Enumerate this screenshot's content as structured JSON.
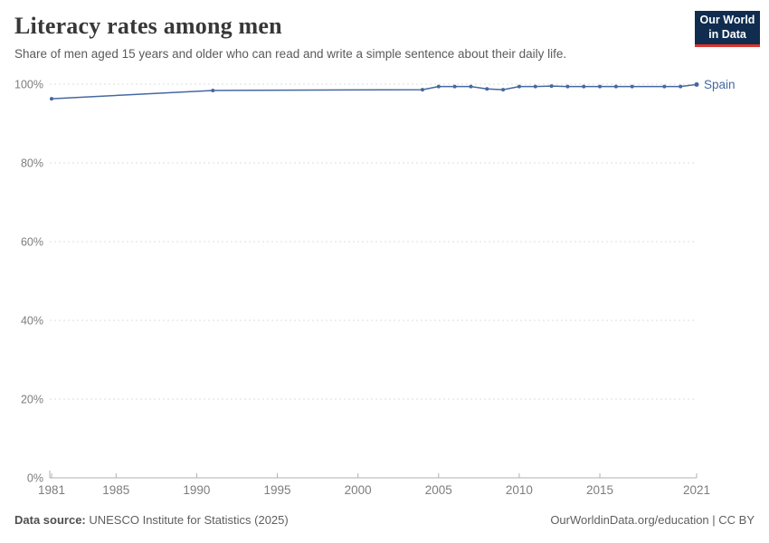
{
  "header": {
    "title": "Literacy rates among men",
    "subtitle": "Share of men aged 15 years and older who can read and write a simple sentence about their daily life."
  },
  "logo": {
    "line1": "Our World",
    "line2": "in Data",
    "bg_color": "#102d50",
    "accent_color": "#dc352c"
  },
  "footer": {
    "source_label": "Data source:",
    "source_text": " UNESCO Institute for Statistics (2025)",
    "link_text": "OurWorldinData.org/education | CC BY"
  },
  "chart_data": {
    "type": "line",
    "title": "Literacy rates among men",
    "xlabel": "",
    "ylabel": "",
    "xlim": [
      1981,
      2021
    ],
    "ylim": [
      0,
      100
    ],
    "x_ticks": [
      1981,
      1985,
      1990,
      1995,
      2000,
      2005,
      2010,
      2015,
      2021
    ],
    "y_ticks": [
      0,
      20,
      40,
      60,
      80,
      100
    ],
    "y_tick_suffix": "%",
    "grid": "horizontal-dashed",
    "legend_position": "end-of-line",
    "colors": {
      "line": "#4568a2",
      "gridline": "#dddddd",
      "axis": "#b0b0b0",
      "tick_label": "#7d7d7d"
    },
    "series": [
      {
        "name": "Spain",
        "color": "#4568a2",
        "points": [
          {
            "year": 1981,
            "value": 96.3
          },
          {
            "year": 1991,
            "value": 98.4
          },
          {
            "year": 2004,
            "value": 98.6
          },
          {
            "year": 2005,
            "value": 99.4
          },
          {
            "year": 2006,
            "value": 99.4
          },
          {
            "year": 2007,
            "value": 99.4
          },
          {
            "year": 2008,
            "value": 98.8
          },
          {
            "year": 2009,
            "value": 98.6
          },
          {
            "year": 2010,
            "value": 99.4
          },
          {
            "year": 2011,
            "value": 99.4
          },
          {
            "year": 2012,
            "value": 99.5
          },
          {
            "year": 2013,
            "value": 99.4
          },
          {
            "year": 2014,
            "value": 99.4
          },
          {
            "year": 2015,
            "value": 99.4
          },
          {
            "year": 2016,
            "value": 99.4
          },
          {
            "year": 2017,
            "value": 99.4
          },
          {
            "year": 2019,
            "value": 99.4
          },
          {
            "year": 2020,
            "value": 99.4
          },
          {
            "year": 2021,
            "value": 99.9
          }
        ]
      }
    ]
  }
}
